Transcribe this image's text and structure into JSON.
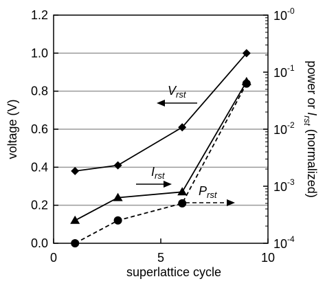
{
  "chart_data": {
    "type": "line",
    "xlabel": "superlattice cycle",
    "ylabel": "voltage (V)",
    "y2label": {
      "prefix": "power or ",
      "var": "I",
      "sub": "rst",
      "suffix": " (normalized)"
    },
    "xlim": [
      0,
      10
    ],
    "ylim": [
      0,
      1.2
    ],
    "y2lim_log10": [
      -4,
      0
    ],
    "x_ticks": [
      0,
      5,
      10
    ],
    "y_ticks": [
      "0.0",
      "0.2",
      "0.4",
      "0.6",
      "0.8",
      "1.0",
      "1.2"
    ],
    "y2_ticks": [
      {
        "base": "10",
        "exp": "-4",
        "log": -4
      },
      {
        "base": "10",
        "exp": "-3",
        "log": -3
      },
      {
        "base": "10",
        "exp": "-2",
        "log": -2
      },
      {
        "base": "10",
        "exp": "-1",
        "log": -1
      },
      {
        "base": "10",
        "exp": "-0",
        "log": 0
      }
    ],
    "grid": "horizontal",
    "series": [
      {
        "name": "V_rst",
        "axis": "left",
        "marker": "diamond",
        "line": "solid",
        "x": [
          1,
          3,
          6,
          9
        ],
        "y": [
          0.38,
          0.41,
          0.61,
          1.0
        ]
      },
      {
        "name": "I_rst",
        "axis": "left-scale",
        "marker": "triangle",
        "line": "solid",
        "x": [
          1,
          3,
          6,
          9
        ],
        "y": [
          0.12,
          0.24,
          0.27,
          0.85
        ]
      },
      {
        "name": "P_rst",
        "axis": "left-scale",
        "marker": "circle",
        "line": "dashed",
        "x": [
          1,
          3,
          6,
          9
        ],
        "y": [
          0.0,
          0.12,
          0.21,
          0.84
        ]
      }
    ],
    "annotations": [
      {
        "var": "V",
        "sub": "rst",
        "arrow": "left"
      },
      {
        "var": "I",
        "sub": "rst",
        "arrow": "right"
      },
      {
        "var": "P",
        "sub": "rst",
        "arrow": "right-dashed"
      }
    ]
  }
}
